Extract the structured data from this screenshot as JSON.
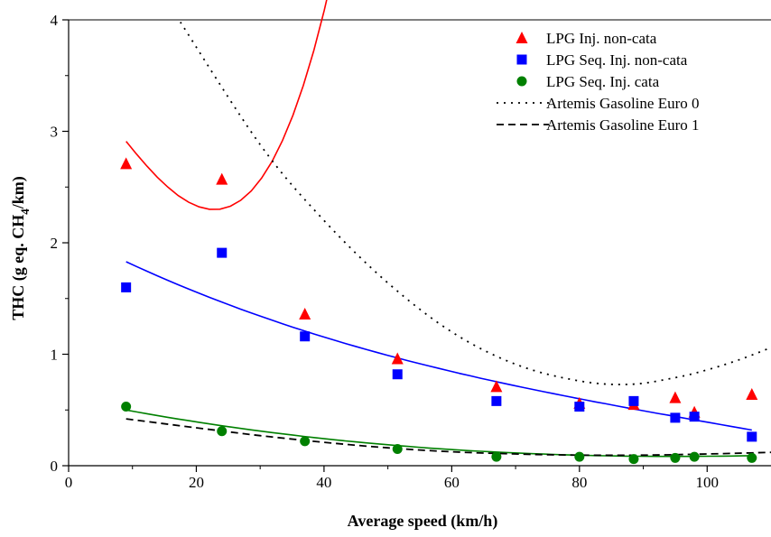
{
  "chart_data": {
    "type": "scatter",
    "xlabel": "Average speed (km/h)",
    "ylabel_main": "THC (g eq. CH",
    "ylabel_sub": "4",
    "ylabel_tail": "/km)",
    "xlim": [
      0,
      110
    ],
    "ylim": [
      0,
      4
    ],
    "xticks": [
      0,
      20,
      40,
      60,
      80,
      100
    ],
    "yticks": [
      0,
      1,
      2,
      3,
      4
    ],
    "grid": false,
    "legend_position": "top-right",
    "series": [
      {
        "name": "LPG Inj. non-cata",
        "marker": "triangle",
        "color": "#ff0000",
        "x": [
          9,
          24,
          37,
          51.5,
          67,
          80,
          88.5,
          95,
          98,
          107
        ],
        "y": [
          2.71,
          2.57,
          1.36,
          0.96,
          0.71,
          0.56,
          0.55,
          0.61,
          0.48,
          0.64
        ],
        "fit": [
          2.91,
          0.58,
          0.5,
          88
        ]
      },
      {
        "name": "LPG Seq. Inj. non-cata",
        "marker": "square",
        "color": "#0000ff",
        "x": [
          9,
          24,
          37,
          51.5,
          67,
          80,
          88.5,
          95,
          98,
          107
        ],
        "y": [
          1.6,
          1.91,
          1.16,
          0.82,
          0.58,
          0.53,
          0.58,
          0.43,
          0.44,
          0.26
        ],
        "fit": [
          1.83,
          0.96,
          0.65,
          0.32
        ]
      },
      {
        "name": "LPG Seq. Inj. cata",
        "marker": "circle",
        "color": "#008000",
        "x": [
          9,
          24,
          37,
          51.5,
          67,
          80,
          88.5,
          95,
          98,
          107
        ],
        "y": [
          0.53,
          0.31,
          0.22,
          0.15,
          0.08,
          0.08,
          0.06,
          0.07,
          0.08,
          0.07
        ],
        "fit": [
          0.5,
          0.155,
          0.055,
          0.09
        ]
      },
      {
        "name": "Artemis Gasoline Euro 0",
        "line": "dotted",
        "color": "#000000",
        "x": [
          17.5,
          30,
          40,
          50,
          60,
          70,
          80,
          88,
          95,
          100,
          105,
          110
        ],
        "y": [
          3.98,
          2.88,
          2.2,
          1.64,
          1.2,
          0.91,
          0.76,
          0.73,
          0.79,
          0.86,
          0.95,
          1.06
        ]
      },
      {
        "name": "Artemis Gasoline Euro 1",
        "line": "dashed",
        "color": "#000000",
        "x": [
          9,
          20,
          30,
          40,
          50,
          60,
          70,
          80,
          90,
          100,
          110
        ],
        "y": [
          0.42,
          0.34,
          0.27,
          0.21,
          0.16,
          0.125,
          0.105,
          0.095,
          0.095,
          0.105,
          0.12
        ]
      }
    ]
  }
}
